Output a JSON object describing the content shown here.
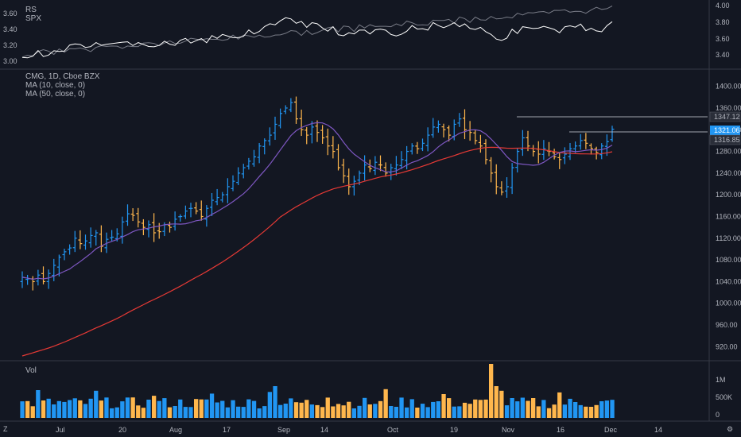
{
  "rs_pane": {
    "legend": [
      "RS",
      "SPX"
    ],
    "left_ticks": [
      "3.60",
      "3.40",
      "3.20",
      "3.00"
    ],
    "right_ticks": [
      "4.00",
      "3.80",
      "3.60",
      "3.40"
    ]
  },
  "price_pane": {
    "legend": [
      "CMG, 1D, Cboe BZX",
      "MA (10, close, 0)",
      "MA (50, close, 0)"
    ],
    "y_ticks": [
      "1400.00",
      "1360.00",
      "1320.00",
      "1280.00",
      "1240.00",
      "1200.00",
      "1160.00",
      "1120.00",
      "1080.00",
      "1040.00",
      "1000.00",
      "960.00",
      "920.00"
    ],
    "price_labels": [
      {
        "text": "1347.12",
        "color": "#2a2e39"
      },
      {
        "text": "1321.06",
        "color": "#2196f3"
      },
      {
        "text": "1316.85",
        "color": "#2a2e39"
      }
    ]
  },
  "volume_pane": {
    "legend": "Vol",
    "y_ticks": [
      "1M",
      "500K",
      "0"
    ]
  },
  "time_axis": {
    "labels": [
      "Jul",
      "20",
      "Aug",
      "17",
      "Sep",
      "14",
      "Oct",
      "19",
      "Nov",
      "16",
      "Dec",
      "14"
    ],
    "corner_left": "Z",
    "corner_right": "⚙"
  },
  "colors": {
    "background": "#131722",
    "up": "#2196f3",
    "down": "#ffb74d",
    "ma10": "#7e57c2",
    "ma50": "#e53935",
    "rs_line": "#ffffff",
    "spx_line": "#787b86",
    "grid": "#2a2e39"
  },
  "chart_data": {
    "type": "ohlc",
    "title": "CMG, 1D, Cboe BZX",
    "ylim": [
      900,
      1420
    ],
    "series": [
      {
        "name": "CMG",
        "close": [
          1048,
          1045,
          1040,
          1052,
          1040,
          1055,
          1070,
          1085,
          1095,
          1102,
          1120,
          1110,
          1115,
          1125,
          1130,
          1105,
          1118,
          1122,
          1128,
          1150,
          1165,
          1162,
          1150,
          1140,
          1145,
          1130,
          1132,
          1145,
          1140,
          1155,
          1160,
          1170,
          1175,
          1170,
          1160,
          1175,
          1190,
          1195,
          1200,
          1215,
          1225,
          1240,
          1250,
          1262,
          1270,
          1290,
          1300,
          1310,
          1330,
          1350,
          1360,
          1370,
          1340,
          1320,
          1310,
          1325,
          1315,
          1305,
          1290,
          1280,
          1250,
          1235,
          1215,
          1225,
          1240,
          1255,
          1248,
          1260,
          1255,
          1240,
          1250,
          1255,
          1265,
          1280,
          1290,
          1285,
          1295,
          1310,
          1325,
          1330,
          1320,
          1310,
          1330,
          1340,
          1320,
          1315,
          1300,
          1290,
          1265,
          1240,
          1215,
          1205,
          1215,
          1250,
          1280,
          1305,
          1290,
          1280,
          1275,
          1285,
          1280,
          1270,
          1265,
          1275,
          1285,
          1290,
          1300,
          1295,
          1285,
          1278,
          1290,
          1298,
          1321
        ]
      }
    ]
  }
}
